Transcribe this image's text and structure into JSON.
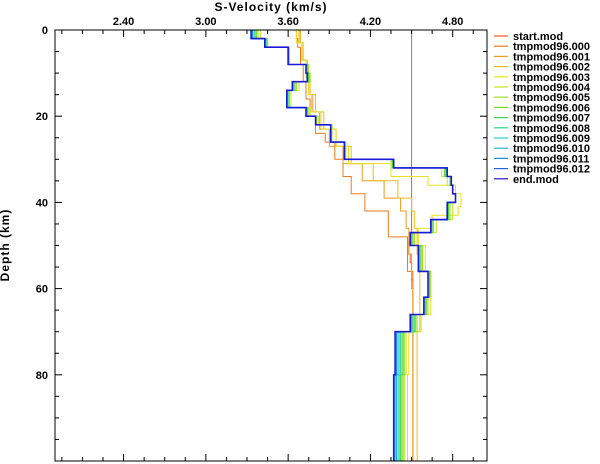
{
  "chart_data": {
    "type": "line",
    "xlabel": "S-Velocity (km/s)",
    "ylabel": "Depth (km)",
    "x_axis_position": "top",
    "y_axis_inverted": true,
    "xlim": [
      1.9,
      5.05
    ],
    "ylim": [
      0,
      100
    ],
    "x_ticks": [
      2.4,
      3.0,
      3.6,
      4.2,
      4.8
    ],
    "x_tick_labels": [
      "2.40",
      "3.00",
      "3.60",
      "4.20",
      "4.80"
    ],
    "x_minor_step": 0.15,
    "y_ticks": [
      0,
      20,
      40,
      60,
      80
    ],
    "y_tick_labels": [
      "0",
      "20",
      "40",
      "60",
      "80"
    ],
    "y_minor_step": 5,
    "grid": false,
    "legend_position": "right",
    "series": [
      {
        "name": "start.mod",
        "color": "#f25a1e",
        "depth": [
          0,
          48,
          49,
          52,
          54,
          58,
          100
        ],
        "velocity": [
          4.5,
          4.5,
          4.48,
          4.49,
          4.5,
          4.51,
          4.51
        ]
      },
      {
        "name": "tmpmod96.000",
        "color": "#ee7a1a",
        "depth": [
          0,
          2,
          4,
          8,
          12,
          16,
          20,
          24,
          26,
          30,
          34,
          38,
          42,
          48,
          56,
          66,
          76,
          100
        ],
        "velocity": [
          3.66,
          3.67,
          3.69,
          3.71,
          3.73,
          3.76,
          3.8,
          3.87,
          3.94,
          4.0,
          4.06,
          4.16,
          4.33,
          4.47,
          4.51,
          4.51,
          4.51,
          4.51
        ]
      },
      {
        "name": "tmpmod96.001",
        "color": "#f29a1c",
        "depth": [
          0,
          3,
          7,
          11,
          15,
          19,
          23,
          27,
          31,
          35,
          39,
          42,
          46,
          52,
          60,
          70,
          100
        ],
        "velocity": [
          3.68,
          3.7,
          3.73,
          3.75,
          3.78,
          3.83,
          3.9,
          4.0,
          4.14,
          4.3,
          4.42,
          4.46,
          4.48,
          4.5,
          4.51,
          4.51,
          4.51
        ]
      },
      {
        "name": "tmpmod96.002",
        "color": "#f2bc1c",
        "depth": [
          0,
          3,
          7,
          11,
          15,
          19,
          23,
          27,
          31,
          35,
          39,
          42,
          46,
          52,
          60,
          70,
          100
        ],
        "velocity": [
          3.69,
          3.71,
          3.74,
          3.76,
          3.8,
          3.86,
          3.95,
          4.06,
          4.22,
          4.4,
          4.5,
          4.52,
          4.54,
          4.56,
          4.56,
          4.54,
          4.5
        ]
      },
      {
        "name": "tmpmod96.003",
        "color": "#e8e21e",
        "depth": [
          0,
          3,
          7,
          11,
          15,
          19,
          23,
          27,
          31,
          34,
          36,
          38,
          41,
          43,
          46,
          50,
          56,
          66,
          70,
          80,
          100
        ],
        "velocity": [
          3.66,
          3.7,
          3.73,
          3.75,
          3.77,
          3.84,
          3.95,
          4.04,
          4.35,
          4.62,
          4.82,
          4.86,
          4.84,
          4.65,
          4.55,
          4.6,
          4.64,
          4.57,
          4.48,
          4.47,
          4.46
        ]
      },
      {
        "name": "tmpmod96.004",
        "color": "#c8e61e",
        "depth": [
          0,
          2,
          4,
          8,
          10,
          12,
          14,
          18,
          20,
          22,
          26,
          30,
          32,
          34,
          36,
          38,
          40,
          44,
          47,
          50,
          56,
          62,
          66,
          70,
          80,
          100
        ],
        "velocity": [
          3.4,
          3.45,
          3.6,
          3.75,
          3.76,
          3.68,
          3.62,
          3.76,
          3.82,
          3.92,
          4.02,
          4.35,
          4.72,
          4.76,
          4.8,
          4.82,
          4.8,
          4.68,
          4.52,
          4.58,
          4.64,
          4.62,
          4.56,
          4.46,
          4.45,
          4.45
        ]
      },
      {
        "name": "tmpmod96.005",
        "color": "#a0e222",
        "depth": [
          0,
          2,
          4,
          8,
          10,
          12,
          14,
          18,
          20,
          22,
          26,
          30,
          32,
          34,
          36,
          38,
          40,
          44,
          47,
          50,
          56,
          62,
          66,
          70,
          80,
          100
        ],
        "velocity": [
          3.38,
          3.45,
          3.61,
          3.75,
          3.76,
          3.66,
          3.61,
          3.75,
          3.81,
          3.92,
          4.02,
          4.36,
          4.74,
          4.78,
          4.8,
          4.82,
          4.78,
          4.66,
          4.52,
          4.58,
          4.64,
          4.62,
          4.54,
          4.45,
          4.44,
          4.44
        ]
      },
      {
        "name": "tmpmod96.006",
        "color": "#6cd822",
        "depth": [
          0,
          2,
          4,
          8,
          10,
          12,
          14,
          18,
          20,
          22,
          26,
          30,
          32,
          34,
          36,
          38,
          40,
          44,
          47,
          50,
          56,
          62,
          66,
          70,
          80,
          100
        ],
        "velocity": [
          3.37,
          3.44,
          3.6,
          3.74,
          3.75,
          3.65,
          3.6,
          3.74,
          3.8,
          3.91,
          4.01,
          4.36,
          4.74,
          4.78,
          4.8,
          4.82,
          4.77,
          4.65,
          4.51,
          4.57,
          4.63,
          4.61,
          4.53,
          4.44,
          4.43,
          4.43
        ]
      },
      {
        "name": "tmpmod96.007",
        "color": "#3cd644",
        "depth": [
          0,
          2,
          4,
          8,
          10,
          12,
          14,
          18,
          20,
          22,
          26,
          30,
          32,
          34,
          36,
          38,
          40,
          44,
          47,
          50,
          56,
          62,
          66,
          70,
          80,
          100
        ],
        "velocity": [
          3.36,
          3.44,
          3.6,
          3.74,
          3.75,
          3.65,
          3.6,
          3.74,
          3.8,
          3.91,
          4.01,
          4.36,
          4.75,
          4.79,
          4.8,
          4.82,
          4.77,
          4.65,
          4.5,
          4.56,
          4.63,
          4.6,
          4.52,
          4.43,
          4.42,
          4.42
        ]
      },
      {
        "name": "tmpmod96.008",
        "color": "#2ad68a",
        "depth": [
          0,
          2,
          4,
          8,
          10,
          12,
          14,
          18,
          20,
          22,
          26,
          30,
          32,
          34,
          36,
          38,
          40,
          44,
          47,
          50,
          56,
          62,
          66,
          70,
          80,
          100
        ],
        "velocity": [
          3.35,
          3.44,
          3.6,
          3.74,
          3.74,
          3.64,
          3.6,
          3.74,
          3.8,
          3.91,
          4.01,
          4.37,
          4.75,
          4.79,
          4.8,
          4.82,
          4.76,
          4.64,
          4.5,
          4.56,
          4.62,
          4.6,
          4.51,
          4.42,
          4.41,
          4.41
        ]
      },
      {
        "name": "tmpmod96.009",
        "color": "#22d2c0",
        "depth": [
          0,
          2,
          4,
          8,
          10,
          12,
          14,
          18,
          20,
          22,
          26,
          30,
          32,
          34,
          36,
          38,
          40,
          44,
          47,
          50,
          56,
          62,
          66,
          70,
          80,
          100
        ],
        "velocity": [
          3.35,
          3.43,
          3.6,
          3.73,
          3.74,
          3.64,
          3.59,
          3.73,
          3.8,
          3.91,
          4.01,
          4.37,
          4.75,
          4.79,
          4.8,
          4.82,
          4.76,
          4.64,
          4.49,
          4.55,
          4.62,
          4.59,
          4.5,
          4.41,
          4.4,
          4.4
        ]
      },
      {
        "name": "tmpmod96.010",
        "color": "#1eb4e0",
        "depth": [
          0,
          2,
          4,
          8,
          10,
          12,
          14,
          18,
          20,
          22,
          26,
          30,
          32,
          34,
          36,
          38,
          40,
          44,
          47,
          50,
          56,
          62,
          66,
          70,
          80,
          100
        ],
        "velocity": [
          3.34,
          3.43,
          3.6,
          3.73,
          3.74,
          3.63,
          3.59,
          3.73,
          3.8,
          3.91,
          4.01,
          4.37,
          4.76,
          4.79,
          4.8,
          4.82,
          4.76,
          4.64,
          4.49,
          4.55,
          4.62,
          4.59,
          4.5,
          4.4,
          4.39,
          4.39
        ]
      },
      {
        "name": "tmpmod96.011",
        "color": "#1e8ce6",
        "depth": [
          0,
          2,
          4,
          8,
          10,
          12,
          14,
          18,
          20,
          22,
          26,
          30,
          32,
          34,
          36,
          38,
          40,
          44,
          47,
          50,
          56,
          62,
          66,
          70,
          80,
          100
        ],
        "velocity": [
          3.34,
          3.43,
          3.6,
          3.73,
          3.74,
          3.63,
          3.59,
          3.73,
          3.8,
          3.91,
          4.01,
          4.37,
          4.76,
          4.79,
          4.8,
          4.82,
          4.76,
          4.64,
          4.49,
          4.55,
          4.62,
          4.59,
          4.49,
          4.39,
          4.38,
          4.38
        ]
      },
      {
        "name": "tmpmod96.012",
        "color": "#2264e8",
        "depth": [
          0,
          2,
          4,
          8,
          10,
          12,
          14,
          18,
          20,
          22,
          26,
          30,
          32,
          34,
          36,
          38,
          40,
          44,
          47,
          50,
          56,
          62,
          66,
          70,
          80,
          100
        ],
        "velocity": [
          3.33,
          3.43,
          3.6,
          3.73,
          3.74,
          3.63,
          3.59,
          3.73,
          3.8,
          3.91,
          4.01,
          4.37,
          4.76,
          4.79,
          4.8,
          4.82,
          4.76,
          4.64,
          4.49,
          4.55,
          4.62,
          4.59,
          4.49,
          4.38,
          4.37,
          4.37
        ]
      },
      {
        "name": "end.mod",
        "color": "#1a1adc",
        "depth": [
          0,
          2,
          4,
          8,
          10,
          12,
          14,
          18,
          20,
          22,
          26,
          30,
          32,
          34,
          36,
          38,
          40,
          44,
          47,
          50,
          56,
          62,
          66,
          70,
          80,
          100
        ],
        "velocity": [
          3.33,
          3.43,
          3.6,
          3.73,
          3.74,
          3.63,
          3.59,
          3.73,
          3.8,
          3.91,
          4.01,
          4.37,
          4.76,
          4.79,
          4.8,
          4.82,
          4.76,
          4.64,
          4.49,
          4.55,
          4.62,
          4.59,
          4.49,
          4.38,
          4.37,
          4.37
        ]
      }
    ]
  }
}
